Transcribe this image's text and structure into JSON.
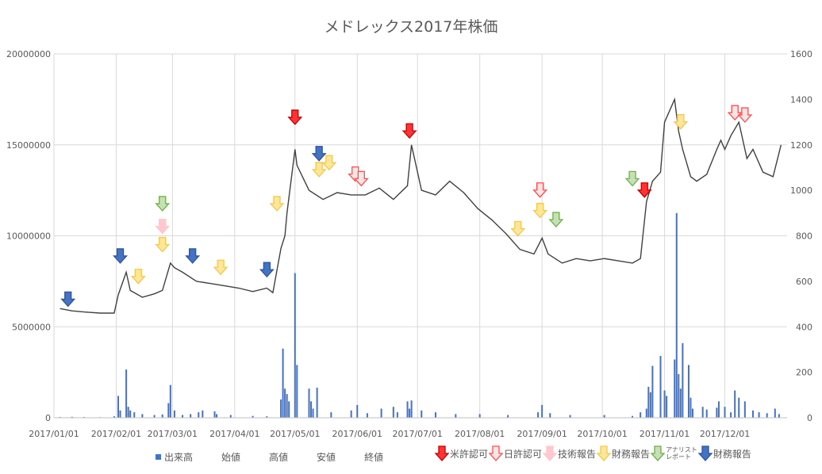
{
  "chart_data": {
    "type": "stock-with-volume",
    "title": "メドレックス2017年株価",
    "y_left": {
      "range": [
        0,
        20000000
      ],
      "ticks": [
        "0",
        "5000000",
        "10000000",
        "15000000",
        "20000000"
      ]
    },
    "y_right": {
      "range": [
        0,
        1600
      ],
      "ticks": [
        "0",
        "200",
        "400",
        "600",
        "800",
        "1000",
        "1200",
        "1400",
        "1600"
      ]
    },
    "x_range": [
      "2017-01-01",
      "2018-01-01"
    ],
    "x_ticks": [
      "2017/01/01",
      "2017/02/01",
      "2017/03/01",
      "2017/04/01",
      "2017/05/01",
      "2017/06/01",
      "2017/07/01",
      "2017/08/01",
      "2017/09/01",
      "2017/10/01",
      "2017/11/01",
      "2017/12/01"
    ],
    "grid": true,
    "volume_series": {
      "name": "出来高",
      "color": "#4472c4",
      "points": [
        [
          "2017-01-04",
          40000
        ],
        [
          "2017-01-10",
          50000
        ],
        [
          "2017-01-16",
          40000
        ],
        [
          "2017-01-24",
          30000
        ],
        [
          "2017-01-31",
          80000
        ],
        [
          "2017-02-02",
          1200000
        ],
        [
          "2017-02-03",
          400000
        ],
        [
          "2017-02-06",
          2650000
        ],
        [
          "2017-02-07",
          600000
        ],
        [
          "2017-02-08",
          400000
        ],
        [
          "2017-02-10",
          300000
        ],
        [
          "2017-02-14",
          200000
        ],
        [
          "2017-02-20",
          150000
        ],
        [
          "2017-02-24",
          180000
        ],
        [
          "2017-02-27",
          800000
        ],
        [
          "2017-02-28",
          1800000
        ],
        [
          "2017-03-02",
          400000
        ],
        [
          "2017-03-06",
          150000
        ],
        [
          "2017-03-10",
          200000
        ],
        [
          "2017-03-14",
          300000
        ],
        [
          "2017-03-16",
          400000
        ],
        [
          "2017-03-22",
          350000
        ],
        [
          "2017-03-23",
          200000
        ],
        [
          "2017-03-30",
          150000
        ],
        [
          "2017-04-10",
          100000
        ],
        [
          "2017-04-17",
          80000
        ],
        [
          "2017-04-24",
          1000000
        ],
        [
          "2017-04-25",
          3800000
        ],
        [
          "2017-04-26",
          1600000
        ],
        [
          "2017-04-27",
          1300000
        ],
        [
          "2017-04-28",
          900000
        ],
        [
          "2017-05-01",
          7950000
        ],
        [
          "2017-05-02",
          2900000
        ],
        [
          "2017-05-08",
          1600000
        ],
        [
          "2017-05-09",
          900000
        ],
        [
          "2017-05-10",
          500000
        ],
        [
          "2017-05-12",
          1650000
        ],
        [
          "2017-05-19",
          300000
        ],
        [
          "2017-05-29",
          400000
        ],
        [
          "2017-06-01",
          700000
        ],
        [
          "2017-06-06",
          250000
        ],
        [
          "2017-06-13",
          500000
        ],
        [
          "2017-06-19",
          600000
        ],
        [
          "2017-06-21",
          300000
        ],
        [
          "2017-06-26",
          900000
        ],
        [
          "2017-06-27",
          500000
        ],
        [
          "2017-06-28",
          950000
        ],
        [
          "2017-07-03",
          400000
        ],
        [
          "2017-07-10",
          300000
        ],
        [
          "2017-07-20",
          200000
        ],
        [
          "2017-08-01",
          200000
        ],
        [
          "2017-08-15",
          150000
        ],
        [
          "2017-08-30",
          300000
        ],
        [
          "2017-09-01",
          700000
        ],
        [
          "2017-09-05",
          250000
        ],
        [
          "2017-09-15",
          150000
        ],
        [
          "2017-10-02",
          150000
        ],
        [
          "2017-10-16",
          100000
        ],
        [
          "2017-10-20",
          300000
        ],
        [
          "2017-10-23",
          500000
        ],
        [
          "2017-10-24",
          1700000
        ],
        [
          "2017-10-25",
          1400000
        ],
        [
          "2017-10-26",
          2850000
        ],
        [
          "2017-10-30",
          3400000
        ],
        [
          "2017-11-01",
          1500000
        ],
        [
          "2017-11-02",
          1200000
        ],
        [
          "2017-11-06",
          3200000
        ],
        [
          "2017-11-07",
          11250000
        ],
        [
          "2017-11-08",
          2400000
        ],
        [
          "2017-11-09",
          1600000
        ],
        [
          "2017-11-10",
          4100000
        ],
        [
          "2017-11-13",
          2900000
        ],
        [
          "2017-11-14",
          1100000
        ],
        [
          "2017-11-15",
          500000
        ],
        [
          "2017-11-20",
          600000
        ],
        [
          "2017-11-22",
          450000
        ],
        [
          "2017-11-27",
          550000
        ],
        [
          "2017-11-28",
          900000
        ],
        [
          "2017-12-01",
          600000
        ],
        [
          "2017-12-04",
          300000
        ],
        [
          "2017-12-06",
          1500000
        ],
        [
          "2017-12-08",
          1100000
        ],
        [
          "2017-12-11",
          900000
        ],
        [
          "2017-12-15",
          400000
        ],
        [
          "2017-12-18",
          300000
        ],
        [
          "2017-12-22",
          250000
        ],
        [
          "2017-12-26",
          500000
        ],
        [
          "2017-12-28",
          200000
        ]
      ]
    },
    "price_series": {
      "name": "株価",
      "legend_names": [
        "始値",
        "高値",
        "安値",
        "終値"
      ],
      "points": [
        [
          "2017-01-04",
          480
        ],
        [
          "2017-01-10",
          470
        ],
        [
          "2017-01-16",
          465
        ],
        [
          "2017-01-24",
          460
        ],
        [
          "2017-01-31",
          460
        ],
        [
          "2017-02-02",
          540
        ],
        [
          "2017-02-06",
          640
        ],
        [
          "2017-02-08",
          560
        ],
        [
          "2017-02-14",
          530
        ],
        [
          "2017-02-20",
          545
        ],
        [
          "2017-02-24",
          560
        ],
        [
          "2017-02-28",
          680
        ],
        [
          "2017-03-02",
          660
        ],
        [
          "2017-03-06",
          640
        ],
        [
          "2017-03-13",
          600
        ],
        [
          "2017-03-20",
          590
        ],
        [
          "2017-03-27",
          580
        ],
        [
          "2017-04-03",
          570
        ],
        [
          "2017-04-10",
          555
        ],
        [
          "2017-04-17",
          570
        ],
        [
          "2017-04-20",
          550
        ],
        [
          "2017-04-24",
          745
        ],
        [
          "2017-04-26",
          800
        ],
        [
          "2017-04-27",
          900
        ],
        [
          "2017-05-01",
          1180
        ],
        [
          "2017-05-02",
          1110
        ],
        [
          "2017-05-08",
          1000
        ],
        [
          "2017-05-15",
          960
        ],
        [
          "2017-05-22",
          990
        ],
        [
          "2017-05-29",
          980
        ],
        [
          "2017-06-05",
          980
        ],
        [
          "2017-06-12",
          1010
        ],
        [
          "2017-06-19",
          960
        ],
        [
          "2017-06-26",
          1020
        ],
        [
          "2017-06-28",
          1200
        ],
        [
          "2017-07-03",
          1000
        ],
        [
          "2017-07-10",
          980
        ],
        [
          "2017-07-17",
          1040
        ],
        [
          "2017-07-24",
          990
        ],
        [
          "2017-07-31",
          920
        ],
        [
          "2017-08-07",
          870
        ],
        [
          "2017-08-14",
          810
        ],
        [
          "2017-08-21",
          740
        ],
        [
          "2017-08-28",
          720
        ],
        [
          "2017-09-01",
          790
        ],
        [
          "2017-09-04",
          720
        ],
        [
          "2017-09-11",
          680
        ],
        [
          "2017-09-18",
          700
        ],
        [
          "2017-09-25",
          690
        ],
        [
          "2017-10-02",
          700
        ],
        [
          "2017-10-09",
          690
        ],
        [
          "2017-10-16",
          680
        ],
        [
          "2017-10-20",
          700
        ],
        [
          "2017-10-23",
          950
        ],
        [
          "2017-10-26",
          1040
        ],
        [
          "2017-10-30",
          1080
        ],
        [
          "2017-11-01",
          1300
        ],
        [
          "2017-11-06",
          1400
        ],
        [
          "2017-11-08",
          1260
        ],
        [
          "2017-11-10",
          1180
        ],
        [
          "2017-11-14",
          1060
        ],
        [
          "2017-11-17",
          1040
        ],
        [
          "2017-11-22",
          1070
        ],
        [
          "2017-11-27",
          1180
        ],
        [
          "2017-11-29",
          1220
        ],
        [
          "2017-12-01",
          1180
        ],
        [
          "2017-12-04",
          1240
        ],
        [
          "2017-12-08",
          1300
        ],
        [
          "2017-12-12",
          1140
        ],
        [
          "2017-12-15",
          1180
        ],
        [
          "2017-12-20",
          1080
        ],
        [
          "2017-12-25",
          1060
        ],
        [
          "2017-12-29",
          1200
        ]
      ]
    },
    "event_markers": [
      {
        "date": "2017-01-08",
        "y": 490,
        "type": "blue"
      },
      {
        "date": "2017-02-03",
        "y": 680,
        "type": "blue"
      },
      {
        "date": "2017-02-12",
        "y": 590,
        "type": "yellow"
      },
      {
        "date": "2017-02-24",
        "y": 730,
        "type": "yellow"
      },
      {
        "date": "2017-02-24",
        "y": 810,
        "type": "pink"
      },
      {
        "date": "2017-02-24",
        "y": 910,
        "type": "green"
      },
      {
        "date": "2017-03-11",
        "y": 680,
        "type": "blue"
      },
      {
        "date": "2017-03-25",
        "y": 630,
        "type": "yellow"
      },
      {
        "date": "2017-04-17",
        "y": 620,
        "type": "blue"
      },
      {
        "date": "2017-04-22",
        "y": 910,
        "type": "yellow"
      },
      {
        "date": "2017-05-01",
        "y": 1290,
        "type": "red"
      },
      {
        "date": "2017-05-13",
        "y": 1130,
        "type": "blue"
      },
      {
        "date": "2017-05-13",
        "y": 1060,
        "type": "yellow"
      },
      {
        "date": "2017-05-18",
        "y": 1090,
        "type": "yellow"
      },
      {
        "date": "2017-05-31",
        "y": 1040,
        "type": "hollow-red"
      },
      {
        "date": "2017-06-03",
        "y": 1020,
        "type": "hollow-red"
      },
      {
        "date": "2017-06-27",
        "y": 1230,
        "type": "red"
      },
      {
        "date": "2017-08-20",
        "y": 800,
        "type": "yellow"
      },
      {
        "date": "2017-08-31",
        "y": 970,
        "type": "hollow-red"
      },
      {
        "date": "2017-08-31",
        "y": 880,
        "type": "yellow"
      },
      {
        "date": "2017-09-08",
        "y": 840,
        "type": "green"
      },
      {
        "date": "2017-10-16",
        "y": 1020,
        "type": "green"
      },
      {
        "date": "2017-10-22",
        "y": 970,
        "type": "red"
      },
      {
        "date": "2017-11-09",
        "y": 1270,
        "type": "yellow"
      },
      {
        "date": "2017-12-06",
        "y": 1310,
        "type": "hollow-red"
      },
      {
        "date": "2017-12-11",
        "y": 1300,
        "type": "hollow-red"
      }
    ]
  },
  "legend": {
    "series": [
      {
        "label": "出来高",
        "swatch": true
      },
      {
        "label": "始値"
      },
      {
        "label": "高値"
      },
      {
        "label": "安値"
      },
      {
        "label": "終値"
      }
    ],
    "markers": [
      {
        "type": "red",
        "label": "米許認可"
      },
      {
        "type": "hollow-red",
        "label": "日許認可"
      },
      {
        "type": "pink",
        "label": "技術報告"
      },
      {
        "type": "yellow",
        "label": "財務報告"
      },
      {
        "type": "green",
        "label": "アナリスト\nレポート"
      },
      {
        "type": "blue",
        "label": "財務報告"
      }
    ]
  },
  "marker_styles": {
    "red": {
      "fill": "#ff3333",
      "stroke": "#c00000"
    },
    "hollow-red": {
      "fill": "#fce4e4",
      "stroke": "#ff4d4d"
    },
    "pink": {
      "fill": "#ffc7ce",
      "stroke": "#ffc7ce"
    },
    "yellow": {
      "fill": "#ffe699",
      "stroke": "#f2c94c"
    },
    "green": {
      "fill": "#c5e0b4",
      "stroke": "#70ad47"
    },
    "blue": {
      "fill": "#4472c4",
      "stroke": "#2f5597"
    }
  }
}
